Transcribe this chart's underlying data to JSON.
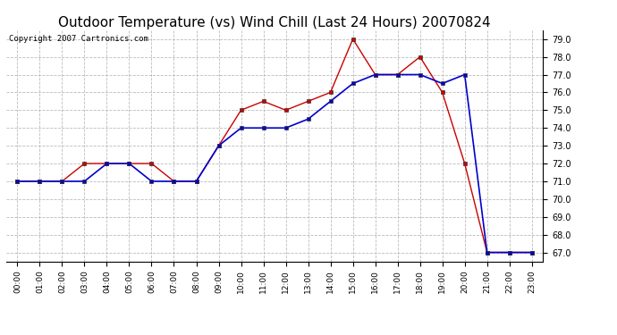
{
  "title": "Outdoor Temperature (vs) Wind Chill (Last 24 Hours) 20070824",
  "copyright_text": "Copyright 2007 Cartronics.com",
  "hours": [
    0,
    1,
    2,
    3,
    4,
    5,
    6,
    7,
    8,
    9,
    10,
    11,
    12,
    13,
    14,
    15,
    16,
    17,
    18,
    19,
    20,
    21,
    22,
    23
  ],
  "red_temp": [
    71,
    71,
    71,
    72,
    72,
    72,
    72,
    71,
    71,
    73,
    75,
    75.5,
    75,
    75.5,
    76,
    79,
    77,
    77,
    78,
    76,
    72,
    67,
    67,
    67
  ],
  "blue_wind_chill": [
    71,
    71,
    71,
    71,
    72,
    72,
    71,
    71,
    71,
    73,
    74,
    74,
    74,
    74.5,
    75.5,
    76.5,
    77,
    77,
    77,
    76.5,
    77,
    67,
    67,
    67
  ],
  "ylim_min": 66.5,
  "ylim_max": 79.5,
  "yticks": [
    67,
    68,
    69,
    70,
    71,
    72,
    73,
    74,
    75,
    76,
    77,
    78,
    79
  ],
  "line_color_red": "#cc0000",
  "line_color_blue": "#0000cc",
  "grid_color": "#bbbbbb",
  "bg_color": "#ffffff",
  "title_fontsize": 11,
  "copyright_fontsize": 6.5
}
